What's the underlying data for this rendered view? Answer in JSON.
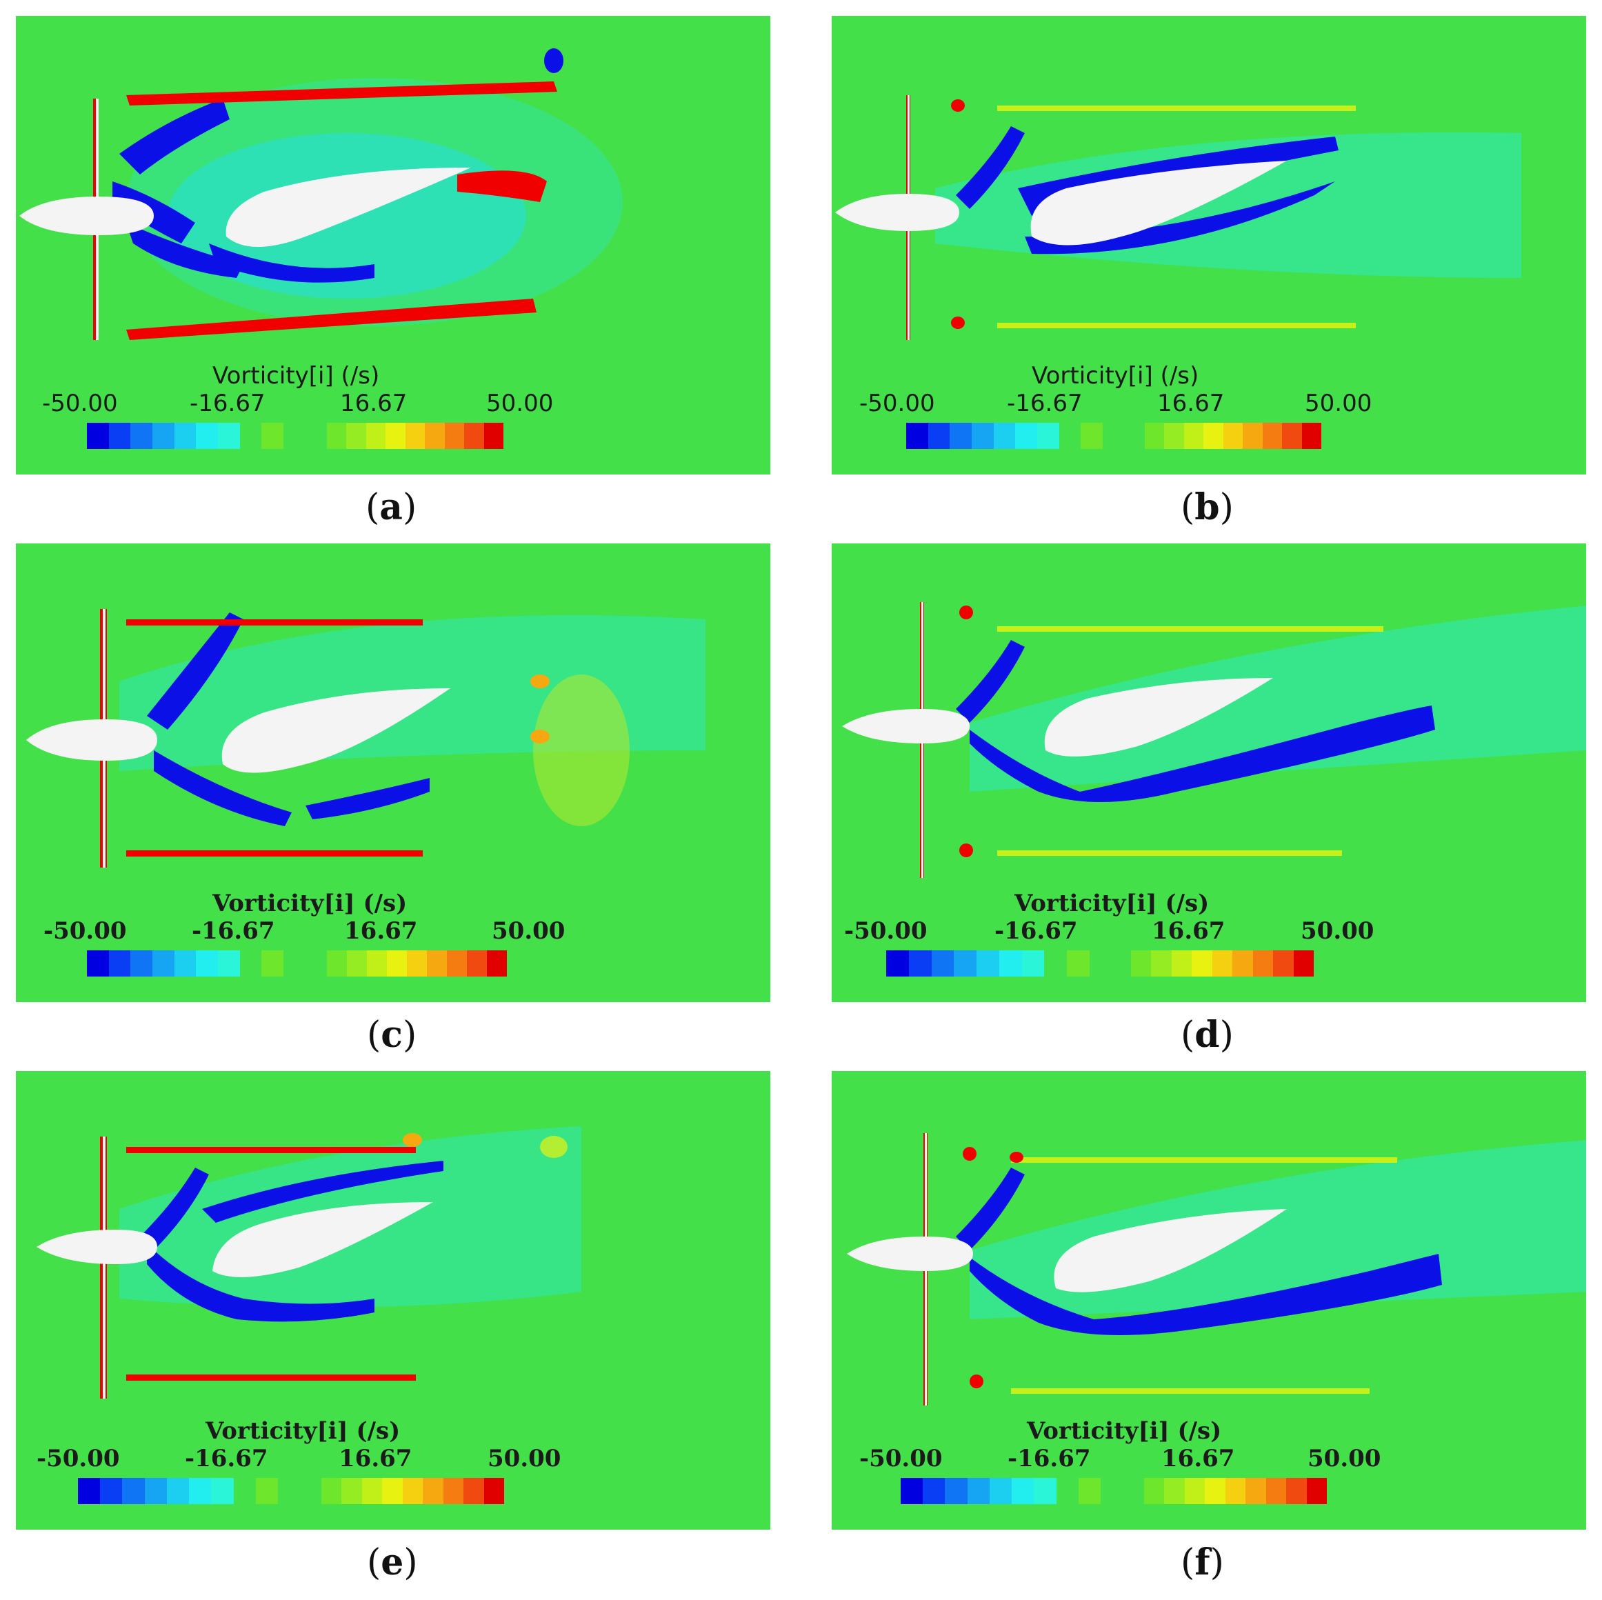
{
  "panels": [
    {
      "id": "a",
      "caption": "a",
      "legend_title": "Vorticity[i] (/s)",
      "ticks": [
        "-50.00",
        "-16.67",
        "16.67",
        "50.00"
      ]
    },
    {
      "id": "b",
      "caption": "b",
      "legend_title": "Vorticity[i] (/s)",
      "ticks": [
        "-50.00",
        "-16.67",
        "16.67",
        "50.00"
      ]
    },
    {
      "id": "c",
      "caption": "c",
      "legend_title": "Vorticity[i] (/s)",
      "ticks": [
        "-50.00",
        "-16.67",
        "16.67",
        "50.00"
      ]
    },
    {
      "id": "d",
      "caption": "d",
      "legend_title": "Vorticity[i] (/s)",
      "ticks": [
        "-50.00",
        "-16.67",
        "16.67",
        "50.00"
      ]
    },
    {
      "id": "e",
      "caption": "e",
      "legend_title": "Vorticity[i] (/s)",
      "ticks": [
        "-50.00",
        "-16.67",
        "16.67",
        "50.00"
      ]
    },
    {
      "id": "f",
      "caption": "f",
      "legend_title": "Vorticity[i] (/s)",
      "ticks": [
        "-50.00",
        "-16.67",
        "16.67",
        "50.00"
      ]
    }
  ],
  "colors": {
    "background_field": "#44e04a",
    "negative_core": "#0a10e6",
    "positive_core": "#f00000",
    "body": "#f4f4f4",
    "colormap": [
      "#0000e0",
      "#0a3ef5",
      "#0f75f5",
      "#15a5f2",
      "#1ccff0",
      "#22eef0",
      "#2af5d8",
      "#44e04a",
      "#6ee62c",
      "#95ec22",
      "#c0f018",
      "#e8f210",
      "#f5d010",
      "#f5a810",
      "#f57c10",
      "#f04a10",
      "#e00000"
    ]
  }
}
